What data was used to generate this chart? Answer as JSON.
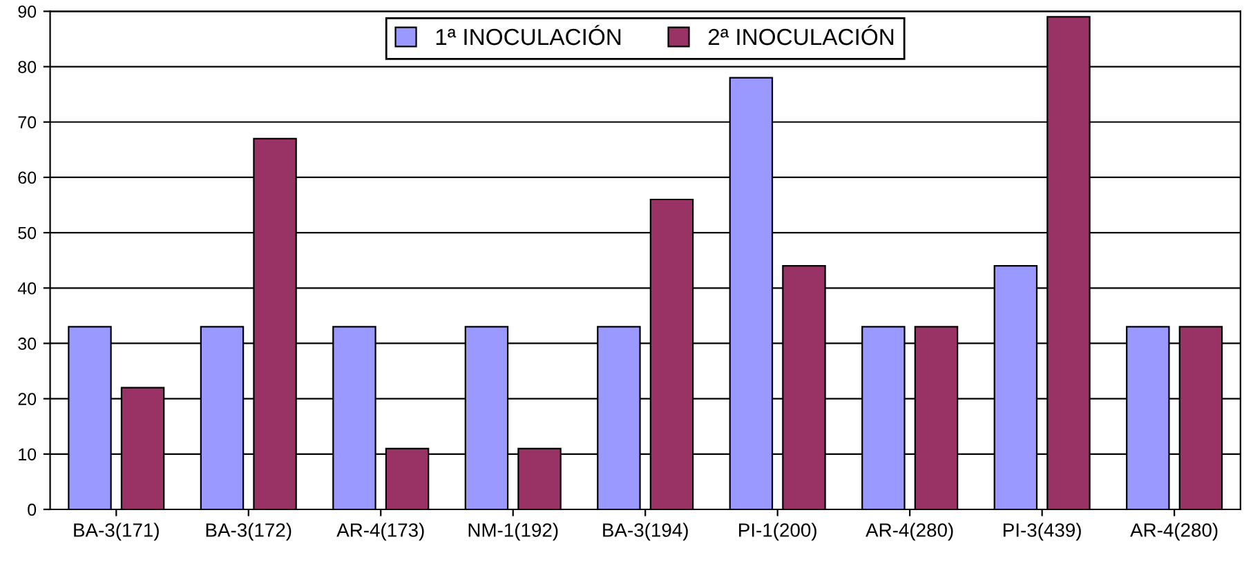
{
  "chart_data": {
    "type": "bar",
    "categories": [
      "BA-3(171)",
      "BA-3(172)",
      "AR-4(173)",
      "NM-1(192)",
      "BA-3(194)",
      "PI-1(200)",
      "AR-4(280)",
      "PI-3(439)",
      "AR-4(280)"
    ],
    "series": [
      {
        "name": "1ª INOCULACIÓN",
        "color": "#9999ff",
        "values": [
          33,
          33,
          33,
          33,
          33,
          78,
          33,
          44,
          33
        ]
      },
      {
        "name": "2ª INOCULACIÓN",
        "color": "#993366",
        "values": [
          22,
          67,
          11,
          11,
          56,
          44,
          33,
          89,
          33
        ]
      }
    ],
    "ylim": [
      0,
      90
    ],
    "yticks": [
      0,
      10,
      20,
      30,
      40,
      50,
      60,
      70,
      80,
      90
    ],
    "grid": "y",
    "legend": "top"
  }
}
